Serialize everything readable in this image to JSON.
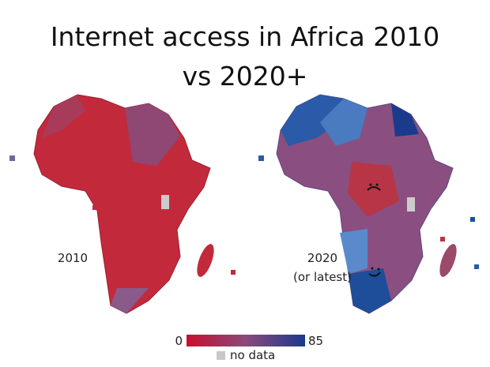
{
  "title_lines": [
    "Internet access in Africa 2010",
    "vs 2020+"
  ],
  "maps": [
    {
      "label_lines": [
        "2010"
      ]
    },
    {
      "label_lines": [
        "2020",
        "(or latest)"
      ]
    }
  ],
  "legend": {
    "min": 0,
    "max": 85,
    "no_data": "no data"
  }
}
